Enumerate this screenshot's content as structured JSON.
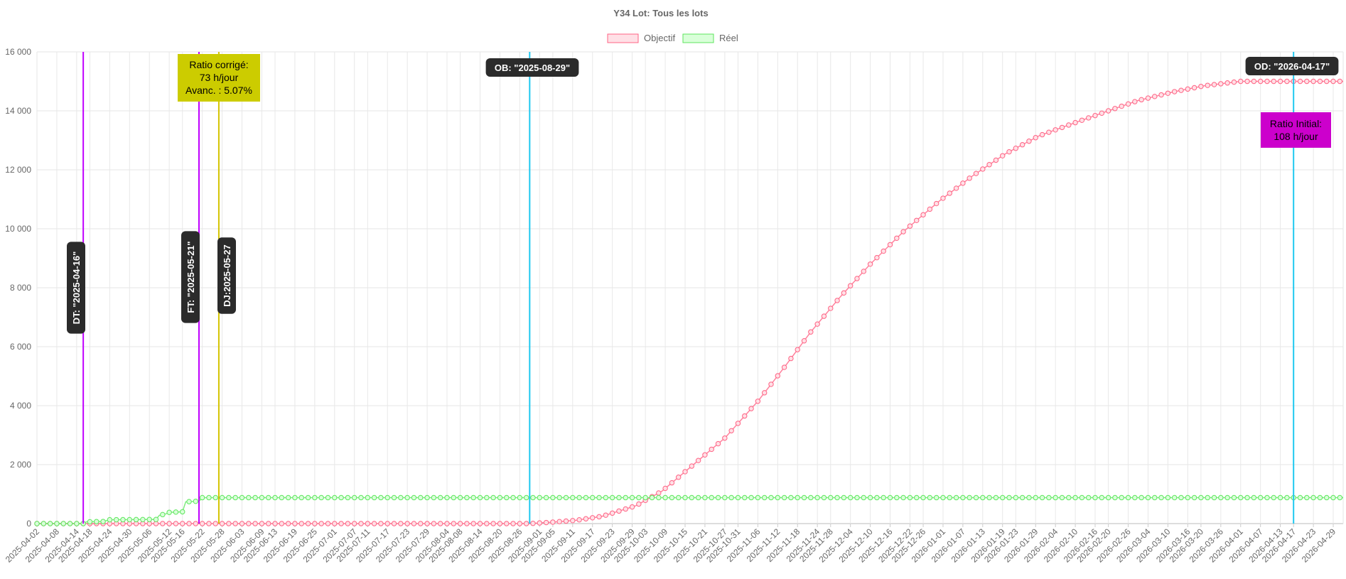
{
  "chart_data": {
    "type": "line",
    "title": "Y34 Lot: Tous les lots",
    "xlabel": "",
    "ylabel": "",
    "ylim": [
      0,
      16000
    ],
    "yticks": [
      0,
      2000,
      4000,
      6000,
      8000,
      10000,
      12000,
      14000,
      16000
    ],
    "ytick_labels": [
      "0",
      "2 000",
      "4 000",
      "6 000",
      "8 000",
      "10 000",
      "12 000",
      "14 000",
      "16 000"
    ],
    "start_date": "2025-04-02",
    "end_date": "2026-05-02",
    "tick_labels": [
      "2025-04-02",
      "2025-04-08",
      "2025-04-14",
      "2025-04-18",
      "2025-04-24",
      "2025-04-30",
      "2025-05-06",
      "2025-05-12",
      "2025-05-16",
      "2025-05-22",
      "2025-05-28",
      "2025-06-03",
      "2025-06-09",
      "2025-06-13",
      "2025-06-19",
      "2025-06-25",
      "2025-07-01",
      "2025-07-07",
      "2025-07-11",
      "2025-07-17",
      "2025-07-23",
      "2025-07-29",
      "2025-08-04",
      "2025-08-08",
      "2025-08-14",
      "2025-08-20",
      "2025-08-26",
      "2025-09-01",
      "2025-09-05",
      "2025-09-11",
      "2025-09-17",
      "2025-09-23",
      "2025-09-29",
      "2025-10-03",
      "2025-10-09",
      "2025-10-15",
      "2025-10-21",
      "2025-10-27",
      "2025-10-31",
      "2025-11-06",
      "2025-11-12",
      "2025-11-18",
      "2025-11-24",
      "2025-11-28",
      "2025-12-04",
      "2025-12-10",
      "2025-12-16",
      "2025-12-22",
      "2025-12-26",
      "2026-01-01",
      "2026-01-07",
      "2026-01-13",
      "2026-01-19",
      "2026-01-23",
      "2026-01-29",
      "2026-02-04",
      "2026-02-10",
      "2026-02-16",
      "2026-02-20",
      "2026-02-26",
      "2026-03-04",
      "2026-03-10",
      "2026-03-16",
      "2026-03-20",
      "2026-03-26",
      "2026-04-01",
      "2026-04-07",
      "2026-04-13",
      "2026-04-17",
      "2026-04-23",
      "2026-04-29"
    ],
    "legend": {
      "placement": "top-center",
      "entries": [
        "Objectif",
        "Réel"
      ]
    },
    "grid": true,
    "series": [
      {
        "name": "Objectif",
        "color": "#ff6384",
        "fill": "#ffe0e6",
        "points": [
          [
            "2025-04-02",
            0
          ],
          [
            "2025-08-29",
            0
          ],
          [
            "2025-09-05",
            50
          ],
          [
            "2025-09-12",
            110
          ],
          [
            "2025-09-20",
            250
          ],
          [
            "2025-09-30",
            600
          ],
          [
            "2025-10-08",
            1100
          ],
          [
            "2025-10-17",
            1950
          ],
          [
            "2025-10-27",
            2900
          ],
          [
            "2025-11-06",
            4150
          ],
          [
            "2025-11-14",
            5300
          ],
          [
            "2025-11-22",
            6500
          ],
          [
            "2025-12-01",
            7700
          ],
          [
            "2025-12-10",
            8800
          ],
          [
            "2025-12-20",
            9900
          ],
          [
            "2025-12-31",
            10950
          ],
          [
            "2026-01-10",
            11800
          ],
          [
            "2026-01-20",
            12550
          ],
          [
            "2026-01-30",
            13150
          ],
          [
            "2026-02-10",
            13600
          ],
          [
            "2026-02-20",
            14000
          ],
          [
            "2026-03-01",
            14350
          ],
          [
            "2026-03-12",
            14650
          ],
          [
            "2026-03-21",
            14850
          ],
          [
            "2026-04-01",
            15000
          ],
          [
            "2026-05-02",
            15000
          ]
        ]
      },
      {
        "name": "Réel",
        "color": "#5ee65e",
        "fill": "#d9ffd9",
        "points": [
          [
            "2025-04-02",
            0
          ],
          [
            "2025-04-16",
            0
          ],
          [
            "2025-04-17",
            60
          ],
          [
            "2025-04-22",
            70
          ],
          [
            "2025-04-24",
            130
          ],
          [
            "2025-05-08",
            140
          ],
          [
            "2025-05-09",
            280
          ],
          [
            "2025-05-11",
            330
          ],
          [
            "2025-05-12",
            380
          ],
          [
            "2025-05-16",
            400
          ],
          [
            "2025-05-17",
            740
          ],
          [
            "2025-05-21",
            760
          ],
          [
            "2025-05-22",
            880
          ],
          [
            "2026-05-02",
            880
          ]
        ]
      }
    ],
    "vlines": [
      {
        "date": "2025-04-16",
        "color": "#c000ff",
        "label": "DT: \"2025-04-16\"",
        "orientation": "vertical"
      },
      {
        "date": "2025-05-21",
        "color": "#c000ff",
        "label": "FT: \"2025-05-21\"",
        "orientation": "vertical"
      },
      {
        "date": "2025-05-27",
        "color": "#d4c400",
        "label": "DJ:2025-05-27",
        "orientation": "vertical"
      },
      {
        "date": "2025-08-29",
        "color": "#1ec8f0",
        "label": "OB: \"2025-08-29\"",
        "orientation": "horizontal"
      },
      {
        "date": "2026-04-17",
        "color": "#1ec8f0",
        "label": "OD: \"2026-04-17\"",
        "orientation": "horizontal"
      }
    ],
    "annotations": [
      {
        "id": "ratio-corrige",
        "lines": [
          "Ratio corrigé:",
          "73 h/jour",
          "Avanc. : 5.07%"
        ],
        "bg": "#cccc00",
        "color": "#000000"
      },
      {
        "id": "ratio-initial",
        "lines": [
          "Ratio Initial:",
          "108 h/jour"
        ],
        "bg": "#cc00cc",
        "color": "#000000"
      }
    ]
  }
}
